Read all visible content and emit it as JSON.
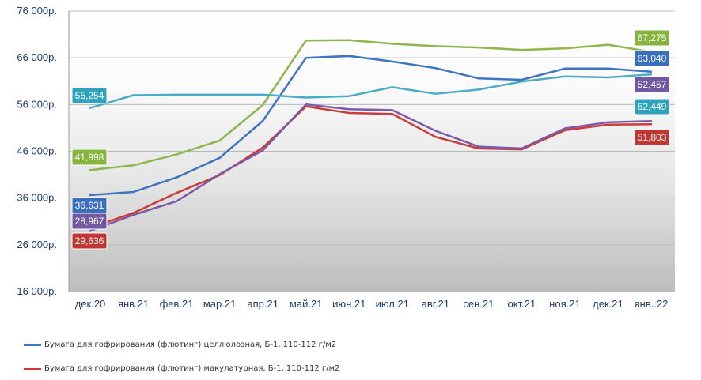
{
  "chart_data": {
    "type": "line",
    "title": "",
    "xlabel": "",
    "ylabel": "",
    "categories": [
      "дек.20",
      "янв.21",
      "фев.21",
      "мар.21",
      "апр.21",
      "май.21",
      "июн.21",
      "июл.21",
      "авг.21",
      "сен.21",
      "окт.21",
      "ноя.21",
      "дек.21",
      "янв..22"
    ],
    "ylim": [
      16000,
      76000
    ],
    "yticks": [
      16000,
      26000,
      36000,
      46000,
      56000,
      66000,
      76000
    ],
    "ytick_labels": [
      "16 000р.",
      "26 000р.",
      "36 000р.",
      "46 000р.",
      "56 000р.",
      "66 000р.",
      "76 000р."
    ],
    "grid": true,
    "legend_position": "bottom",
    "series": [
      {
        "name": "Бумага для гофрирования (флютинг) целлюлозная, Б-1, 110-112 г/м2",
        "color": "#3f74c0",
        "label_color": "#3a6fbd",
        "in_legend": true,
        "values": [
          36631,
          37300,
          40400,
          44600,
          52500,
          66000,
          66400,
          65200,
          63800,
          61600,
          61300,
          63700,
          63700,
          63040
        ],
        "first_label": "36,631",
        "last_label": "63,040"
      },
      {
        "name": "Бумага для гофрирования (флютинг) макулатурная, Б-1, 110-112 г/м2",
        "color": "#cc3b38",
        "label_color": "#c03632",
        "in_legend": true,
        "values": [
          29636,
          32800,
          37100,
          40900,
          46800,
          55600,
          54200,
          54000,
          49100,
          46600,
          46400,
          50500,
          51700,
          51803
        ],
        "first_label": "29,636",
        "last_label": "51,803"
      },
      {
        "name": "",
        "color": "#7b5aa6",
        "label_color": "#71589f",
        "in_legend": false,
        "values": [
          28967,
          32400,
          35300,
          41100,
          46200,
          56000,
          55000,
          54800,
          50400,
          47000,
          46600,
          50900,
          52200,
          52457
        ],
        "first_label": "28,967",
        "last_label": "52,457"
      },
      {
        "name": "",
        "color": "#8db74c",
        "label_color": "#86b43e",
        "in_legend": false,
        "values": [
          41998,
          43000,
          45300,
          48300,
          55900,
          69700,
          69800,
          69000,
          68500,
          68200,
          67700,
          68000,
          68800,
          67275
        ],
        "first_label": "41,998",
        "last_label": "67,275"
      },
      {
        "name": "",
        "color": "#4bacc6",
        "label_color": "#2fa3bd",
        "in_legend": false,
        "values": [
          55254,
          58000,
          58100,
          58100,
          58100,
          57500,
          57800,
          59700,
          58300,
          59200,
          60900,
          62000,
          61800,
          62449
        ],
        "first_label": "55,254",
        "last_label": "62,449"
      }
    ]
  }
}
